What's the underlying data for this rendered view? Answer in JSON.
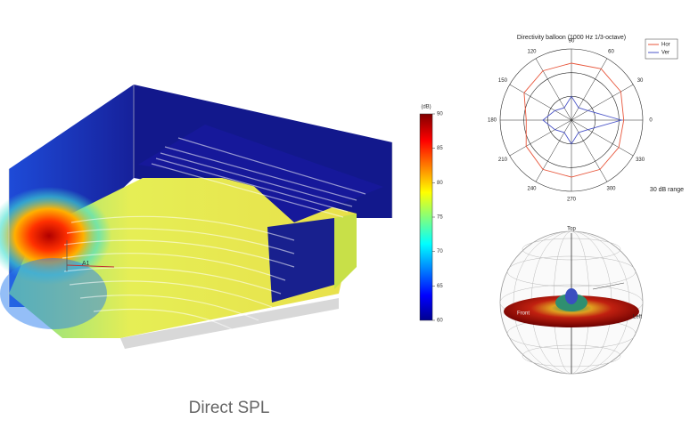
{
  "caption": "Direct SPL",
  "scene": {
    "source_label": "A1"
  },
  "balloon": {
    "top_label": "Top",
    "front_label": "Front",
    "left_label": "Left"
  },
  "chart_data": [
    {
      "type": "colorbar",
      "unit_label": "(dB)",
      "ylim": [
        60,
        90
      ],
      "yticks": [
        60,
        65,
        70,
        75,
        80,
        85,
        90
      ]
    },
    {
      "type": "polar",
      "title": "Directivity balloon (1000 Hz 1/3-octave)",
      "theta": [
        0,
        30,
        60,
        90,
        120,
        150,
        180,
        210,
        240,
        270,
        300,
        330
      ],
      "rlim": [
        -30,
        0
      ],
      "rticks": [
        -20,
        -10,
        0
      ],
      "range_label": "30 dB range",
      "series": [
        {
          "name": "Hor",
          "color": "#e8553a",
          "values": [
            -8,
            -6,
            -5,
            -6,
            -6,
            -7,
            -11,
            -8,
            -6,
            -6,
            -6,
            -7
          ]
        },
        {
          "name": "Ver",
          "color": "#4b55c8",
          "values": [
            -9,
            -22,
            -24,
            -20,
            -24,
            -22,
            -18,
            -22,
            -24,
            -20,
            -24,
            -22
          ]
        }
      ]
    }
  ]
}
